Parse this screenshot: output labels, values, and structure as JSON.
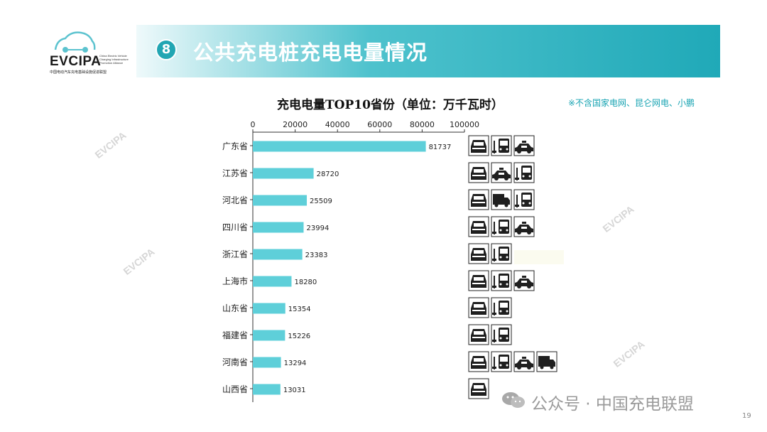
{
  "logo": {
    "name": "EVCIPA",
    "english": "China Electric Vehicle Charging Infrastructure Promotion Alliance",
    "chinese": "中国电动汽车充电基础设施促进联盟"
  },
  "header": {
    "number": "8",
    "title": "公共充电桩充电电量情况"
  },
  "chart_title": "充电电量TOP10省份（单位：万千瓦时）",
  "note": "※不含国家电网、昆仑网电、小鹏",
  "watermark": "EVCIPA",
  "footer": {
    "account": "公众号 · 中国充电联盟",
    "page": "19"
  },
  "colors": {
    "bar": "#5ecfd9",
    "banner": "#20a9b8",
    "accent": "#19a4b3"
  },
  "chart_data": {
    "type": "bar",
    "orientation": "horizontal",
    "categories": [
      "广东省",
      "江苏省",
      "河北省",
      "四川省",
      "浙江省",
      "上海市",
      "山东省",
      "福建省",
      "河南省",
      "山西省"
    ],
    "values": [
      81737,
      28720,
      25509,
      23994,
      23383,
      18280,
      15354,
      15226,
      13294,
      13031
    ],
    "xlim": [
      0,
      100000
    ],
    "xticks": [
      0,
      20000,
      40000,
      60000,
      80000,
      100000
    ],
    "axis_position": "top",
    "grid": false,
    "vehicle_icons": [
      [
        "private-car-icon",
        "bus-icon",
        "taxi-icon"
      ],
      [
        "private-car-icon",
        "taxi-icon",
        "bus-icon"
      ],
      [
        "private-car-icon",
        "truck-icon",
        "bus-icon"
      ],
      [
        "private-car-icon",
        "bus-icon",
        "taxi-icon"
      ],
      [
        "private-car-icon",
        "bus-icon"
      ],
      [
        "private-car-icon",
        "bus-icon",
        "taxi-icon"
      ],
      [
        "private-car-icon",
        "bus-icon"
      ],
      [
        "private-car-icon",
        "bus-icon"
      ],
      [
        "private-car-icon",
        "bus-icon",
        "taxi-icon",
        "truck-icon"
      ],
      [
        "private-car-icon"
      ]
    ]
  }
}
